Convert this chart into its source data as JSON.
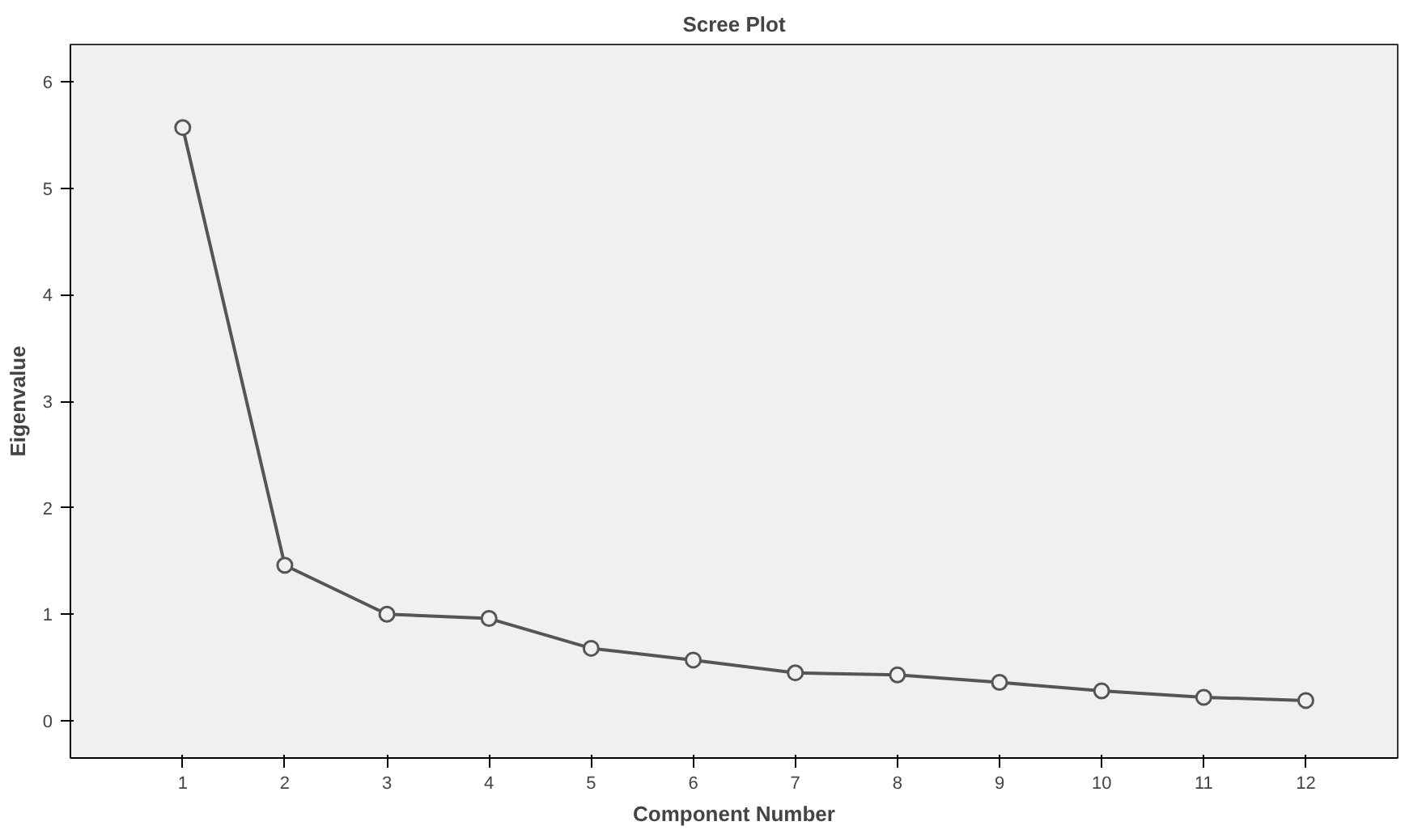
{
  "chart_data": {
    "type": "line",
    "title": "Scree Plot",
    "xlabel": "Component Number",
    "ylabel": "Eigenvalue",
    "x": [
      1,
      2,
      3,
      4,
      5,
      6,
      7,
      8,
      9,
      10,
      11,
      12
    ],
    "series": [
      {
        "color": "#555555",
        "values": [
          5.57,
          1.46,
          1.0,
          0.96,
          0.68,
          0.57,
          0.45,
          0.43,
          0.36,
          0.28,
          0.22,
          0.19
        ]
      }
    ],
    "xlim": [
      -0.1,
      12.9
    ],
    "ylim": [
      -0.35,
      6.35
    ],
    "xticks": [
      1,
      2,
      3,
      4,
      5,
      6,
      7,
      8,
      9,
      10,
      11,
      12
    ],
    "yticks": [
      0,
      1,
      2,
      3,
      4,
      5,
      6
    ],
    "grid": false,
    "marker": "circle",
    "line_style": "solid"
  }
}
